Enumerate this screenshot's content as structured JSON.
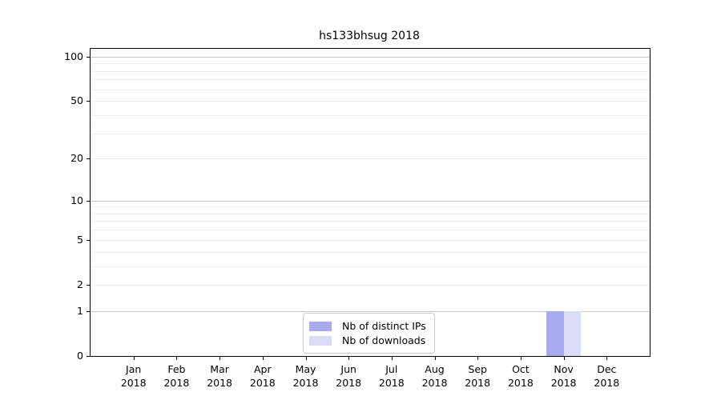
{
  "chart_data": {
    "type": "bar",
    "title": "hs133bhsug 2018",
    "categories": [
      "Jan",
      "Feb",
      "Mar",
      "Apr",
      "May",
      "Jun",
      "Jul",
      "Aug",
      "Sep",
      "Oct",
      "Nov",
      "Dec"
    ],
    "category_year": "2018",
    "series": [
      {
        "name": "Nb of distinct IPs",
        "color": "#a8aaf2",
        "values": [
          0,
          0,
          0,
          0,
          0,
          0,
          0,
          0,
          0,
          0,
          1,
          0
        ]
      },
      {
        "name": "Nb of downloads",
        "color": "#dbddf8",
        "values": [
          0,
          0,
          0,
          0,
          0,
          0,
          0,
          0,
          0,
          0,
          1,
          0
        ]
      }
    ],
    "xlabel": "",
    "ylabel": "",
    "yscale": "log1p",
    "ylim": [
      0,
      113
    ],
    "y_tick_values": [
      0,
      1,
      2,
      5,
      10,
      20,
      50,
      100
    ],
    "y_tick_labels": [
      "0",
      "1",
      "2",
      "5",
      "10",
      "20",
      "50",
      "100"
    ],
    "y_major_gridlines": [
      1,
      10,
      100
    ],
    "y_minor_gridlines": [
      2,
      3,
      4,
      5,
      6,
      7,
      8,
      9,
      20,
      30,
      40,
      50,
      60,
      70,
      80,
      90
    ],
    "grid": true,
    "legend_position": "lower center",
    "legend_entries": [
      "Nb of distinct IPs",
      "Nb of downloads"
    ]
  },
  "colors": {
    "background": "#ffffff",
    "spine": "#000000",
    "major_grid": "#c6c6c6",
    "minor_grid": "#ededed",
    "legend_border": "#cccccc",
    "text": "#000000"
  }
}
